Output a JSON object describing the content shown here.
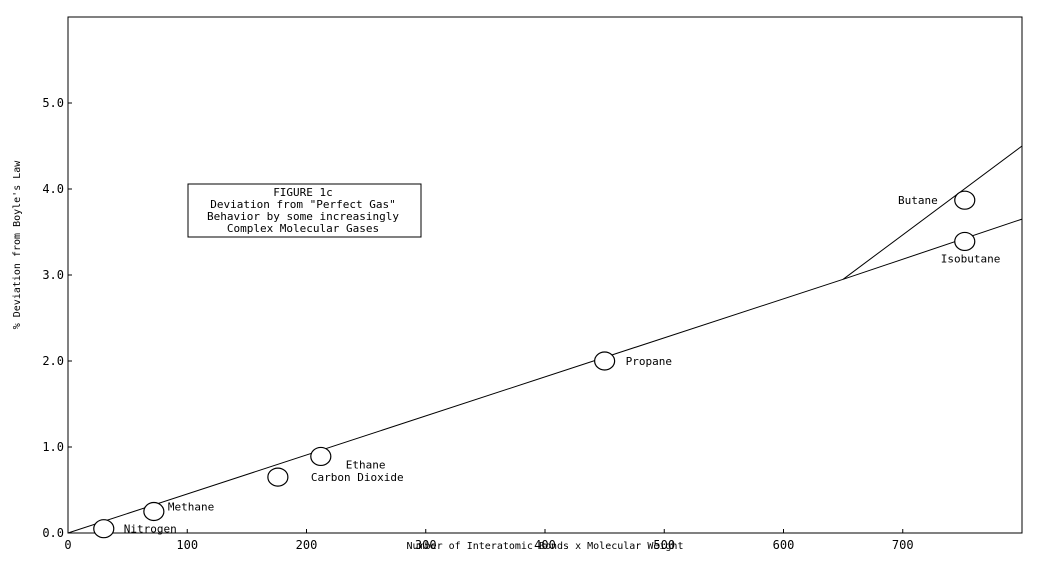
{
  "chart_data": {
    "type": "scatter",
    "title": "",
    "xlabel": "Number of Interatomic Bonds x Molecular Weight",
    "ylabel": "% Deviation from Boyle's Law",
    "xlim": [
      0,
      800
    ],
    "ylim": [
      0,
      6.0
    ],
    "x_ticks": [
      "0",
      "100",
      "200",
      "300",
      "400",
      "500",
      "600",
      "700"
    ],
    "y_ticks": [
      "0.0",
      "1.0",
      "2.0",
      "3.0",
      "4.0",
      "5.0"
    ],
    "grid": false,
    "points": [
      {
        "label": "Nitrogen",
        "x": 30,
        "y": 0.05
      },
      {
        "label": "Methane",
        "x": 72,
        "y": 0.25
      },
      {
        "label": "Carbon Dioxide",
        "x": 176,
        "y": 0.65
      },
      {
        "label": "Ethane",
        "x": 212,
        "y": 0.89
      },
      {
        "label": "Propane",
        "x": 450,
        "y": 2.0
      },
      {
        "label": "Butane",
        "x": 752,
        "y": 3.87
      },
      {
        "label": "Isobutane",
        "x": 752,
        "y": 3.39
      }
    ],
    "lines": [
      {
        "points": [
          [
            0,
            0
          ],
          [
            650,
            2.95
          ]
        ]
      },
      {
        "points": [
          [
            650,
            2.95
          ],
          [
            800,
            3.65
          ]
        ]
      },
      {
        "points": [
          [
            650,
            2.95
          ],
          [
            800,
            4.5
          ]
        ]
      }
    ],
    "annotation": [
      "FIGURE 1c",
      "Deviation from \"Perfect Gas\"",
      "Behavior by some increasingly",
      "Complex Molecular Gases"
    ]
  }
}
